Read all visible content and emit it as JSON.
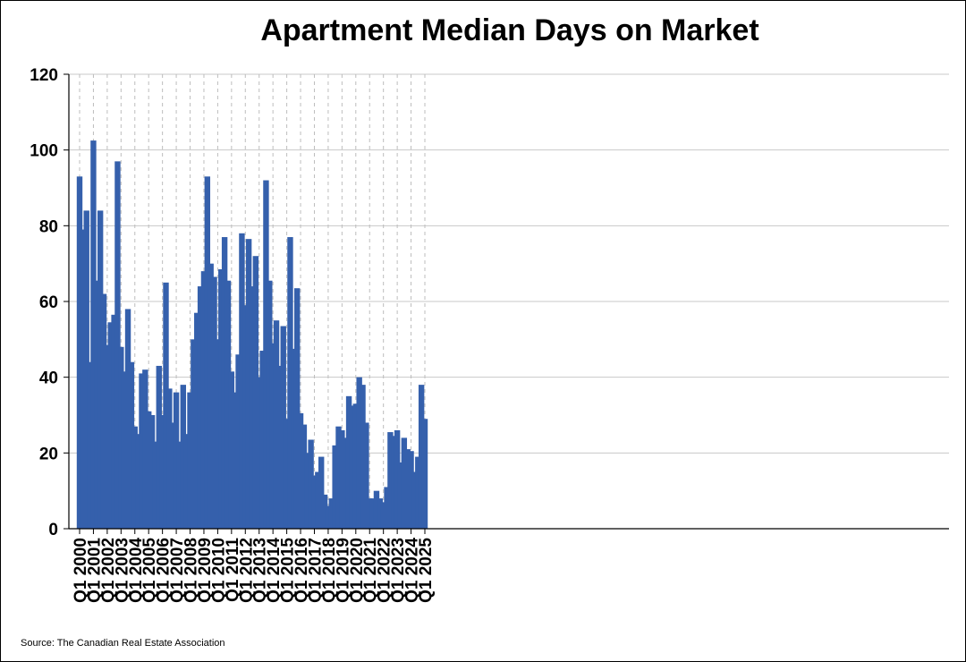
{
  "chart_data": {
    "type": "bar",
    "title": "Apartment Median Days on Market",
    "xlabel": "",
    "ylabel": "",
    "ylim": [
      0,
      120
    ],
    "yticks": [
      0,
      20,
      40,
      60,
      80,
      100,
      120
    ],
    "grid": {
      "horizontal": "solid",
      "vertical": "dashed"
    },
    "bar_color": "#3560ac",
    "x_tick_labels": [
      "Q1 2000",
      "Q1 2001",
      "Q1 2002",
      "Q1 2003",
      "Q1 2004",
      "Q1 2005",
      "Q1 2006",
      "Q1 2007",
      "Q1 2008",
      "Q1 2009",
      "Q1 2010",
      "Q1 2011",
      "Q1 2012",
      "Q1 2013",
      "Q1 2014",
      "Q1 2015",
      "Q1 2016",
      "Q1 2017",
      "Q1 2018",
      "Q1 2019",
      "Q1 2020",
      "Q1 2021",
      "Q1 2022",
      "Q1 2023",
      "Q1 2024",
      "Q1 2025"
    ],
    "categories": [
      "Q1 2000",
      "Q2 2000",
      "Q3 2000",
      "Q4 2000",
      "Q1 2001",
      "Q2 2001",
      "Q3 2001",
      "Q4 2001",
      "Q1 2002",
      "Q2 2002",
      "Q3 2002",
      "Q4 2002",
      "Q1 2003",
      "Q2 2003",
      "Q3 2003",
      "Q4 2003",
      "Q1 2004",
      "Q2 2004",
      "Q3 2004",
      "Q4 2004",
      "Q1 2005",
      "Q2 2005",
      "Q3 2005",
      "Q4 2005",
      "Q1 2006",
      "Q2 2006",
      "Q3 2006",
      "Q4 2006",
      "Q1 2007",
      "Q2 2007",
      "Q3 2007",
      "Q4 2007",
      "Q1 2008",
      "Q2 2008",
      "Q3 2008",
      "Q4 2008",
      "Q1 2009",
      "Q2 2009",
      "Q3 2009",
      "Q4 2009",
      "Q1 2010",
      "Q2 2010",
      "Q3 2010",
      "Q4 2010",
      "Q1 2011",
      "Q2 2011",
      "Q3 2011",
      "Q4 2011",
      "Q1 2012",
      "Q2 2012",
      "Q3 2012",
      "Q4 2012",
      "Q1 2013",
      "Q2 2013",
      "Q3 2013",
      "Q4 2013",
      "Q1 2014",
      "Q2 2014",
      "Q3 2014",
      "Q4 2014",
      "Q1 2015",
      "Q2 2015",
      "Q3 2015",
      "Q4 2015",
      "Q1 2016",
      "Q2 2016",
      "Q3 2016",
      "Q4 2016",
      "Q1 2017",
      "Q2 2017",
      "Q3 2017",
      "Q4 2017",
      "Q1 2018",
      "Q2 2018",
      "Q3 2018",
      "Q4 2018",
      "Q1 2019",
      "Q2 2019",
      "Q3 2019",
      "Q4 2019",
      "Q1 2020",
      "Q2 2020",
      "Q3 2020",
      "Q4 2020",
      "Q1 2021",
      "Q2 2021",
      "Q3 2021",
      "Q4 2021",
      "Q1 2022",
      "Q2 2022",
      "Q3 2022",
      "Q4 2022",
      "Q1 2023",
      "Q2 2023",
      "Q3 2023",
      "Q4 2023",
      "Q1 2024",
      "Q2 2024",
      "Q3 2024",
      "Q4 2024",
      "Q1 2025"
    ],
    "values": [
      93,
      79,
      84,
      44,
      102.5,
      65.5,
      84,
      62,
      48.5,
      54.5,
      56.5,
      97,
      48,
      41.5,
      58,
      44,
      27,
      25,
      41,
      42,
      31,
      30,
      23,
      43,
      30,
      65,
      37,
      28,
      36,
      23,
      38,
      25,
      36,
      50,
      57,
      64,
      68,
      93,
      70,
      66.5,
      50,
      68.5,
      77,
      65.5,
      41.5,
      36,
      46,
      78,
      59,
      76.5,
      64,
      72,
      40,
      47,
      92,
      65.5,
      49,
      55,
      43,
      53.5,
      29,
      77,
      47.5,
      63.5,
      30.5,
      27.5,
      20,
      23.5,
      14,
      15,
      19,
      9,
      6,
      8,
      22,
      27,
      26,
      24,
      35,
      32.5,
      33,
      40,
      38,
      28,
      8,
      8,
      10,
      8,
      7,
      11,
      25.5,
      24.5,
      26,
      17.5,
      24,
      21,
      20.5,
      15,
      19,
      38,
      29
    ]
  },
  "source": "Source: The Canadian Real Estate Association"
}
